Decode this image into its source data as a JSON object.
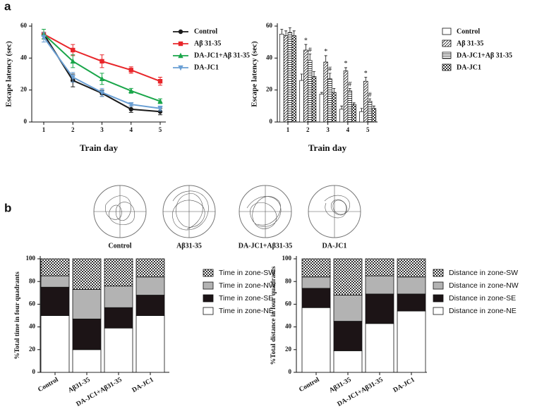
{
  "panel_labels": [
    "a",
    "b"
  ],
  "trajectory_labels": [
    "Control",
    "Aβ31-35",
    "DA-JC1+Aβ31-35",
    "DA-JC1"
  ],
  "chart_data": [
    {
      "type": "line",
      "xlabel": "Train  day",
      "ylabel": "Escape latency (sec)",
      "categories": [
        "1",
        "2",
        "3",
        "4",
        "5"
      ],
      "ylim": [
        0,
        60
      ],
      "yticks": [
        0,
        20,
        40,
        60
      ],
      "series": [
        {
          "name": "Control",
          "color": "#1a1a1a",
          "marker": "circle",
          "values": [
            55,
            26,
            18,
            8,
            6.5
          ],
          "errors": [
            3,
            4,
            2,
            2,
            2
          ]
        },
        {
          "name": "Aβ 31-35",
          "color": "#e8262a",
          "marker": "square",
          "values": [
            55,
            45,
            38,
            32.5,
            25.5
          ],
          "errors": [
            3,
            3.5,
            4,
            2,
            2.5
          ]
        },
        {
          "name": "DA-JC1+Aβ 31-35",
          "color": "#1aa64a",
          "marker": "triangle",
          "values": [
            55,
            38,
            27,
            19.5,
            13
          ],
          "errors": [
            3,
            4,
            3.5,
            1.5,
            1.5
          ]
        },
        {
          "name": "DA-JC1",
          "color": "#6a9fd4",
          "marker": "triangle-down",
          "values": [
            53,
            28,
            18.5,
            11,
            8.5
          ],
          "errors": [
            3,
            3,
            2.5,
            1,
            1.5
          ]
        }
      ]
    },
    {
      "type": "bar",
      "xlabel": "Train  day",
      "ylabel": "Escape latency (sec)",
      "categories": [
        "1",
        "2",
        "3",
        "4",
        "5"
      ],
      "ylim": [
        0,
        60
      ],
      "yticks": [
        0,
        20,
        40,
        60
      ],
      "series": [
        {
          "name": "Control",
          "color": "#ffffff",
          "pattern": "none",
          "values": [
            55,
            26,
            17.5,
            8,
            6.5
          ],
          "errors": [
            3,
            4,
            1,
            2,
            2
          ]
        },
        {
          "name": "Aβ 31-35",
          "color": "#ffffff",
          "pattern": "diagonal",
          "values": [
            54,
            45,
            37.5,
            32,
            25.5
          ],
          "errors": [
            3,
            3.5,
            4,
            2,
            2.5
          ],
          "annotations": [
            null,
            "*",
            "*",
            "*",
            "*"
          ]
        },
        {
          "name": "DA-JC1+Aβ 31-35",
          "color": "#ffffff",
          "pattern": "horizontal",
          "values": [
            56,
            38.5,
            27,
            19.5,
            13
          ],
          "errors": [
            3,
            4,
            3.5,
            1.5,
            1.5
          ],
          "annotations": [
            null,
            "#",
            "#",
            "#",
            "#"
          ]
        },
        {
          "name": "DA-JC1",
          "color": "#ffffff",
          "pattern": "checker",
          "values": [
            54,
            28.5,
            18.5,
            11,
            8.5
          ],
          "errors": [
            3,
            3,
            2.5,
            1,
            1.5
          ]
        }
      ]
    },
    {
      "type": "stacked-bar",
      "ylabel": "%Total time in four quadrants",
      "categories": [
        "Control",
        "Aβ31-35",
        "DA-JC1+Aβ31-35",
        "DA-JC1"
      ],
      "ylim": [
        0,
        100
      ],
      "yticks": [
        0,
        20,
        40,
        60,
        80,
        100
      ],
      "series": [
        {
          "name": "Time in zone-NE",
          "color": "#ffffff",
          "pattern": "none",
          "values": [
            50,
            20,
            39,
            50
          ]
        },
        {
          "name": "Time in zone-SE",
          "color": "#1c1416",
          "pattern": "none",
          "values": [
            25,
            27,
            18,
            18
          ]
        },
        {
          "name": "Time in zone-NW",
          "color": "#b3b3b3",
          "pattern": "none",
          "values": [
            10,
            26,
            19,
            16
          ]
        },
        {
          "name": "Time in zone-SW",
          "color": "#ffffff",
          "pattern": "checker",
          "values": [
            15,
            27,
            24,
            16
          ]
        }
      ]
    },
    {
      "type": "stacked-bar",
      "ylabel": "%Total distance in four quadrants",
      "categories": [
        "Control",
        "Aβ31-35",
        "DA-JC1+Aβ31-35",
        "DA-JC1"
      ],
      "ylim": [
        0,
        100
      ],
      "yticks": [
        0,
        20,
        40,
        60,
        80,
        100
      ],
      "series": [
        {
          "name": "Distance in zone-NE",
          "color": "#ffffff",
          "pattern": "none",
          "values": [
            57,
            19,
            43,
            54
          ]
        },
        {
          "name": "Distance in zone-SE",
          "color": "#1c1416",
          "pattern": "none",
          "values": [
            17,
            26,
            26,
            15
          ]
        },
        {
          "name": "Distance in zone-NW",
          "color": "#b3b3b3",
          "pattern": "none",
          "values": [
            10,
            23,
            16,
            15
          ]
        },
        {
          "name": "Distance in zone-SW",
          "color": "#ffffff",
          "pattern": "checker",
          "values": [
            16,
            32,
            15,
            16
          ]
        }
      ]
    }
  ]
}
